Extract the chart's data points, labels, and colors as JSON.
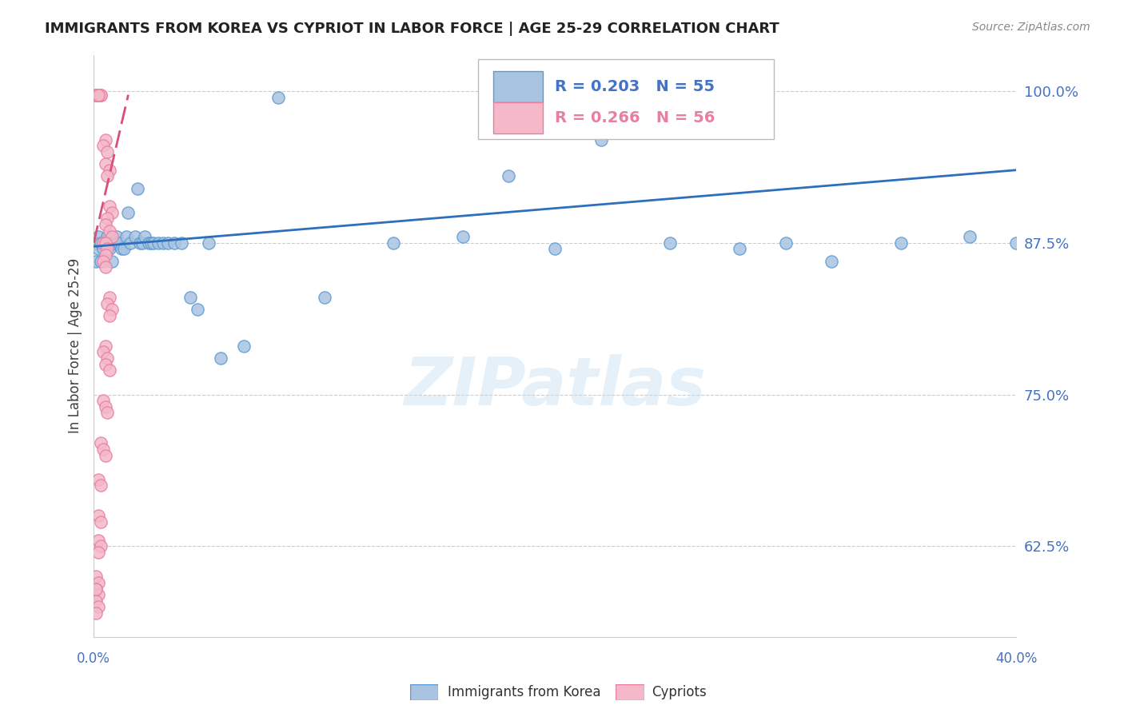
{
  "title": "IMMIGRANTS FROM KOREA VS CYPRIOT IN LABOR FORCE | AGE 25-29 CORRELATION CHART",
  "source": "Source: ZipAtlas.com",
  "ylabel": "In Labor Force | Age 25-29",
  "ytick_labels": [
    "100.0%",
    "87.5%",
    "75.0%",
    "62.5%"
  ],
  "ytick_values": [
    1.0,
    0.875,
    0.75,
    0.625
  ],
  "xlim": [
    0.0,
    0.4
  ],
  "ylim": [
    0.55,
    1.03
  ],
  "korea_R": 0.203,
  "korea_N": 55,
  "cypriot_R": 0.266,
  "cypriot_N": 56,
  "korea_color": "#a8c4e0",
  "korea_edge_color": "#5b9bd5",
  "cypriot_color": "#f4b8c8",
  "cypriot_edge_color": "#e87fa0",
  "korea_trend_color": "#2e6fbd",
  "cypriot_trend_color": "#d94f75",
  "scatter_size": 120,
  "korea_x": [
    0.001,
    0.001,
    0.001,
    0.002,
    0.002,
    0.003,
    0.003,
    0.004,
    0.005,
    0.006,
    0.007,
    0.007,
    0.008,
    0.008,
    0.009,
    0.01,
    0.01,
    0.011,
    0.012,
    0.013,
    0.014,
    0.015,
    0.016,
    0.018,
    0.019,
    0.02,
    0.021,
    0.022,
    0.024,
    0.025,
    0.026,
    0.028,
    0.03,
    0.032,
    0.035,
    0.038,
    0.042,
    0.045,
    0.05,
    0.055,
    0.065,
    0.08,
    0.1,
    0.13,
    0.16,
    0.18,
    0.2,
    0.22,
    0.25,
    0.28,
    0.3,
    0.32,
    0.35,
    0.38,
    0.4
  ],
  "korea_y": [
    0.875,
    0.86,
    0.875,
    0.88,
    0.87,
    0.875,
    0.86,
    0.87,
    0.875,
    0.88,
    0.87,
    0.875,
    0.875,
    0.86,
    0.875,
    0.88,
    0.875,
    0.875,
    0.87,
    0.87,
    0.88,
    0.9,
    0.875,
    0.88,
    0.92,
    0.875,
    0.875,
    0.88,
    0.875,
    0.875,
    0.875,
    0.875,
    0.875,
    0.875,
    0.875,
    0.875,
    0.83,
    0.82,
    0.875,
    0.78,
    0.79,
    0.995,
    0.83,
    0.875,
    0.88,
    0.93,
    0.87,
    0.96,
    0.875,
    0.87,
    0.875,
    0.86,
    0.875,
    0.88,
    0.875
  ],
  "cypriot_x": [
    0.001,
    0.002,
    0.003,
    0.001,
    0.002,
    0.001,
    0.003,
    0.002,
    0.005,
    0.004,
    0.006,
    0.005,
    0.007,
    0.006,
    0.007,
    0.008,
    0.006,
    0.005,
    0.007,
    0.008,
    0.004,
    0.005,
    0.006,
    0.005,
    0.004,
    0.005,
    0.007,
    0.006,
    0.008,
    0.007,
    0.005,
    0.004,
    0.006,
    0.005,
    0.007,
    0.004,
    0.005,
    0.006,
    0.003,
    0.004,
    0.005,
    0.002,
    0.003,
    0.002,
    0.003,
    0.002,
    0.003,
    0.002,
    0.001,
    0.002,
    0.001,
    0.002,
    0.001,
    0.002,
    0.001,
    0.001
  ],
  "cypriot_y": [
    0.997,
    0.997,
    0.997,
    0.997,
    0.997,
    0.997,
    0.997,
    0.997,
    0.96,
    0.955,
    0.95,
    0.94,
    0.935,
    0.93,
    0.905,
    0.9,
    0.895,
    0.89,
    0.885,
    0.88,
    0.875,
    0.875,
    0.87,
    0.865,
    0.86,
    0.855,
    0.83,
    0.825,
    0.82,
    0.815,
    0.79,
    0.785,
    0.78,
    0.775,
    0.77,
    0.745,
    0.74,
    0.735,
    0.71,
    0.705,
    0.7,
    0.68,
    0.675,
    0.65,
    0.645,
    0.63,
    0.625,
    0.62,
    0.6,
    0.595,
    0.59,
    0.585,
    0.58,
    0.575,
    0.57,
    0.59
  ],
  "korea_trend_x": [
    0.0,
    0.4
  ],
  "korea_trend_y": [
    0.872,
    0.935
  ],
  "cypriot_trend_x": [
    0.0,
    0.015
  ],
  "cypriot_trend_y": [
    0.875,
    0.997
  ],
  "watermark": "ZIPatlas",
  "background_color": "#ffffff",
  "grid_color": "#cccccc",
  "tick_color": "#4472c4",
  "axis_label_color": "#404040"
}
